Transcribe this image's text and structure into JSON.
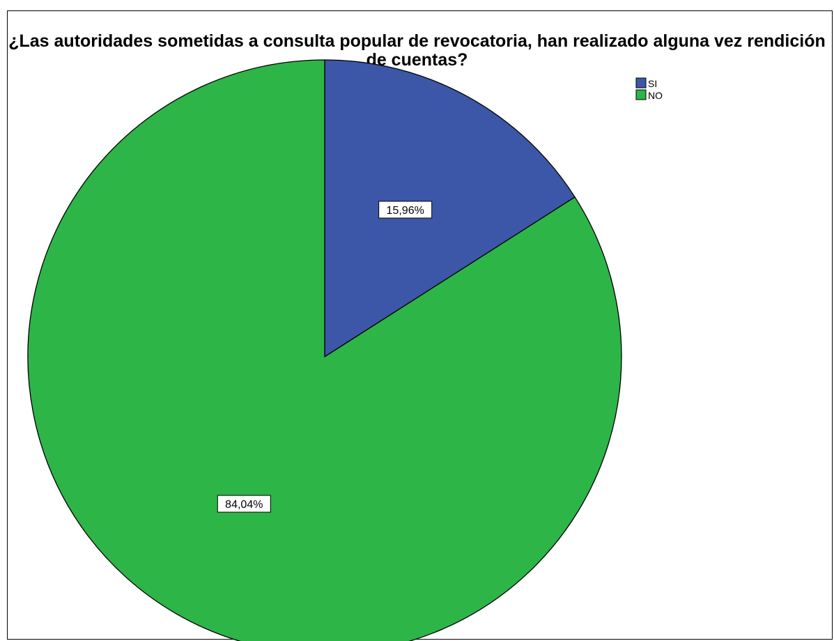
{
  "chart_data": {
    "type": "pie",
    "title": "¿Las autoridades sometidas a consulta popular de revocatoria, han realizado alguna vez rendición de cuentas?",
    "categories": [
      "SI",
      "NO"
    ],
    "values": [
      15.96,
      84.04
    ],
    "value_labels": [
      "15,96%",
      "84,04%"
    ],
    "colors": [
      "#3c57a8",
      "#2db548"
    ],
    "legend": {
      "placement": "top-right",
      "entries": [
        "SI",
        "NO"
      ]
    },
    "start_angle": "12 o'clock",
    "direction": "clockwise"
  }
}
